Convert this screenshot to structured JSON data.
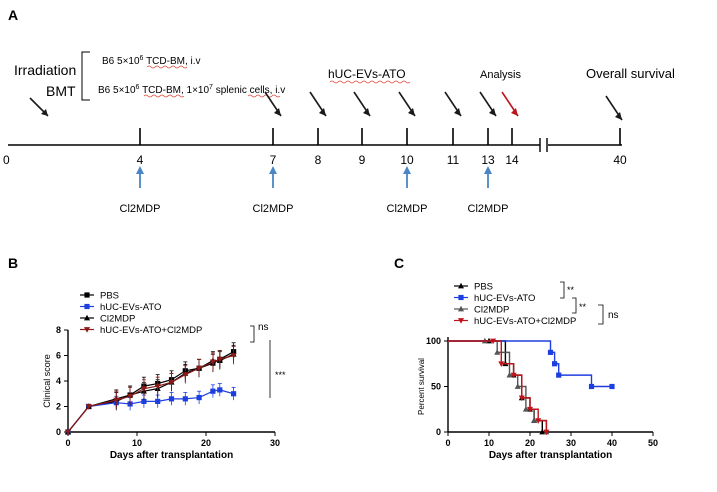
{
  "panel_a": {
    "letter": "A",
    "irradiation": "Irradiation",
    "bmt": "BMT",
    "b6_line1": {
      "main": "B6 5×10",
      "sup": "6",
      "tcd": "TCD-BM",
      "tail": ", i.v"
    },
    "b6_line2": {
      "main": "B6 5×10",
      "sup": "6",
      "tcd": "TCD-BM",
      "mid": ", 1×10",
      "sup2": "7",
      "sp": "splenic",
      "tail": " cells, i.v"
    },
    "treatment_label": "hUC-EVs-ATO",
    "analysis_label": "Analysis",
    "survival_label": "Overall survival",
    "timeline_ticks": [
      "0",
      "4",
      "7",
      "8",
      "9",
      "10",
      "11",
      "13",
      "14",
      "40"
    ],
    "treatment_days": [
      "7",
      "8",
      "9",
      "10",
      "11",
      "13"
    ],
    "cl2mdp_label": "Cl2MDP",
    "cl2mdp_days": [
      "4",
      "7",
      "10",
      "13"
    ],
    "colors": {
      "black_arrow": "#1a1a1a",
      "analysis_arrow": "#c0141c",
      "cl2mdp_arrow": "#4a86c5",
      "squiggle": "#d9483b"
    }
  },
  "chart_data": [
    {
      "panel": "B",
      "type": "line",
      "title": "",
      "xlabel": "Days after transplantation",
      "ylabel": "Clinical score",
      "xlim": [
        0,
        30
      ],
      "ylim": [
        0,
        8
      ],
      "xticks": [
        "0",
        "10",
        "20",
        "30"
      ],
      "yticks": [
        "0",
        "2",
        "4",
        "6",
        "8"
      ],
      "legend": "top-left",
      "series": [
        {
          "name": "PBS",
          "color": "#000000",
          "marker": "square",
          "x": [
            0,
            3,
            7,
            9,
            11,
            13,
            15,
            17,
            19,
            21,
            22,
            24
          ],
          "y": [
            0,
            2.0,
            2.4,
            2.9,
            3.6,
            3.8,
            4.1,
            4.8,
            5.0,
            5.4,
            5.7,
            6.3
          ]
        },
        {
          "name": "hUC-EVs-ATO",
          "color": "#1e3fe0",
          "marker": "square",
          "x": [
            0,
            3,
            7,
            9,
            11,
            13,
            15,
            17,
            19,
            21,
            22,
            24
          ],
          "y": [
            0,
            2.0,
            2.3,
            2.2,
            2.4,
            2.4,
            2.6,
            2.6,
            2.7,
            3.2,
            3.3,
            3.0
          ]
        },
        {
          "name": "Cl2MDP",
          "color": "#000000",
          "marker": "triangle",
          "x": [
            0,
            3,
            7,
            9,
            11,
            13,
            15,
            17,
            19,
            21,
            22,
            24
          ],
          "y": [
            0,
            2.0,
            2.6,
            2.9,
            3.2,
            3.4,
            3.9,
            4.6,
            5.0,
            5.6,
            5.6,
            6.1
          ]
        },
        {
          "name": "hUC-EVs-ATO+Cl2MDP",
          "color": "#8b1a1a",
          "marker": "triangle-down",
          "x": [
            0,
            3,
            7,
            9,
            11,
            13,
            15,
            17,
            19,
            21,
            22,
            24
          ],
          "y": [
            0,
            2.0,
            2.5,
            2.8,
            3.4,
            3.6,
            3.9,
            4.5,
            5.0,
            5.5,
            5.7,
            6.0
          ]
        }
      ],
      "annotations": [
        "ns",
        "***"
      ]
    },
    {
      "panel": "C",
      "type": "line",
      "title": "",
      "xlabel": "Days after transplantation",
      "ylabel": "Percent survival",
      "xlim": [
        0,
        50
      ],
      "ylim": [
        0,
        100
      ],
      "xticks": [
        "0",
        "10",
        "20",
        "30",
        "40",
        "50"
      ],
      "yticks": [
        "0",
        "50",
        "100"
      ],
      "legend": "top-left",
      "series": [
        {
          "name": "PBS",
          "color": "#000000",
          "x": [
            0,
            10,
            14,
            16,
            18,
            20,
            21,
            23
          ],
          "y": [
            100,
            100,
            75,
            62.5,
            37.5,
            25,
            12.5,
            0
          ]
        },
        {
          "name": "hUC-EVs-ATO",
          "color": "#1e3fe0",
          "x": [
            0,
            25,
            26,
            27,
            35,
            40
          ],
          "y": [
            100,
            87.5,
            75,
            62.5,
            50,
            50
          ]
        },
        {
          "name": "Cl2MDP",
          "color": "#555555",
          "x": [
            0,
            9,
            12,
            15,
            17,
            19,
            21,
            24
          ],
          "y": [
            100,
            100,
            87.5,
            62.5,
            50,
            25,
            12.5,
            0
          ]
        },
        {
          "name": "hUC-EVs-ATO+Cl2MDP",
          "color": "#c0141c",
          "x": [
            0,
            11,
            13,
            16,
            18,
            20,
            22,
            24
          ],
          "y": [
            100,
            100,
            75,
            62.5,
            37.5,
            25,
            12.5,
            0
          ]
        }
      ],
      "annotations": [
        "**",
        "**",
        "ns"
      ]
    }
  ]
}
